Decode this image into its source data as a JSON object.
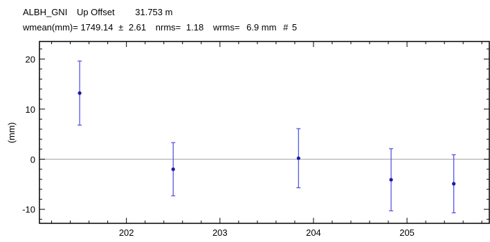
{
  "chart_data": {
    "type": "scatter",
    "title_line1": {
      "station": "ALBH_GNI",
      "component": "Up Offset",
      "offset_value": "31.753 m"
    },
    "title_line2": {
      "wmean_label": "wmean(mm)=",
      "wmean_value": "1749.14",
      "pm_symbol": "±",
      "wmean_error": "2.61",
      "nrms_label": "nrms=",
      "nrms_value": "1.18",
      "wrms_label": "wrms=",
      "wrms_value": "6.9 mm",
      "count_label": "#",
      "count_value": "5"
    },
    "xlabel": "",
    "ylabel": "(mm)",
    "xlim": [
      201.07,
      205.88
    ],
    "ylim": [
      -12.8,
      23.5
    ],
    "x_ticks": [
      202,
      203,
      204,
      205
    ],
    "x_tick_labels": [
      "202",
      "203",
      "204",
      "205"
    ],
    "y_ticks": [
      -10,
      0,
      10,
      20
    ],
    "y_tick_labels": [
      "-10",
      "0",
      "10",
      "20"
    ],
    "zero_line": 0,
    "series": [
      {
        "points": [
          {
            "x": 201.5,
            "y": 13.2,
            "err": 6.4
          },
          {
            "x": 202.5,
            "y": -2.0,
            "err": 5.3
          },
          {
            "x": 203.84,
            "y": 0.2,
            "err": 5.9
          },
          {
            "x": 204.83,
            "y": -4.1,
            "err": 6.2
          },
          {
            "x": 205.5,
            "y": -4.9,
            "err": 5.8
          }
        ]
      }
    ],
    "colors": {
      "points": "#1a1aa8",
      "error_bars": "#4a4ae0",
      "zero_line": "#a0a0a0",
      "axes": "#000000"
    }
  }
}
